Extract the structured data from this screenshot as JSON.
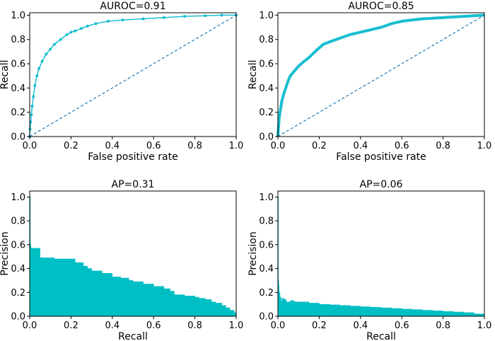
{
  "colors": {
    "curve": "#17becf",
    "diagonal": "#1f77b4",
    "fill": "#00bfc4",
    "axis": "#000000"
  },
  "chart_data": [
    {
      "type": "line",
      "title": "AUROC=0.91",
      "xlabel": "False positive rate",
      "ylabel": "Recall",
      "xlim": [
        0,
        1
      ],
      "ylim": [
        0,
        1.02
      ],
      "xticks": [
        "0.0",
        "0.2",
        "0.4",
        "0.6",
        "0.8",
        "1.0"
      ],
      "yticks": [
        "0.0",
        "0.2",
        "0.4",
        "0.6",
        "0.8",
        "1.0"
      ],
      "grid": false,
      "series": [
        {
          "style": "solid-with-markers",
          "x": [
            0,
            0.002,
            0.005,
            0.008,
            0.012,
            0.018,
            0.025,
            0.035,
            0.045,
            0.06,
            0.08,
            0.1,
            0.12,
            0.15,
            0.18,
            0.2,
            0.22,
            0.25,
            0.28,
            0.32,
            0.38,
            0.45,
            0.55,
            0.65,
            0.75,
            0.85,
            0.93,
            1.0
          ],
          "y": [
            0,
            0.06,
            0.12,
            0.18,
            0.25,
            0.33,
            0.42,
            0.5,
            0.56,
            0.62,
            0.68,
            0.72,
            0.76,
            0.8,
            0.84,
            0.86,
            0.87,
            0.89,
            0.91,
            0.93,
            0.95,
            0.96,
            0.97,
            0.98,
            0.99,
            0.995,
            1.0,
            1.0
          ]
        },
        {
          "style": "dashed",
          "x": [
            0,
            1
          ],
          "y": [
            0,
            1
          ]
        }
      ]
    },
    {
      "type": "line",
      "title": "AUROC=0.85",
      "xlabel": "False positive rate",
      "ylabel": "Recall",
      "xlim": [
        0,
        1
      ],
      "ylim": [
        0,
        1.02
      ],
      "xticks": [
        "0.0",
        "0.2",
        "0.4",
        "0.6",
        "0.8",
        "1.0"
      ],
      "yticks": [
        "0.0",
        "0.2",
        "0.4",
        "0.6",
        "0.8",
        "1.0"
      ],
      "grid": false,
      "series": [
        {
          "style": "thick-dense",
          "x": [
            0,
            0.003,
            0.006,
            0.01,
            0.015,
            0.02,
            0.03,
            0.04,
            0.05,
            0.06,
            0.07,
            0.08,
            0.1,
            0.12,
            0.15,
            0.18,
            0.2,
            0.22,
            0.25,
            0.3,
            0.35,
            0.4,
            0.45,
            0.5,
            0.55,
            0.6,
            0.65,
            0.7,
            0.8,
            0.9,
            1.0
          ],
          "y": [
            0,
            0.08,
            0.15,
            0.2,
            0.25,
            0.3,
            0.36,
            0.41,
            0.46,
            0.5,
            0.52,
            0.54,
            0.58,
            0.61,
            0.65,
            0.7,
            0.73,
            0.76,
            0.78,
            0.81,
            0.84,
            0.86,
            0.88,
            0.9,
            0.93,
            0.95,
            0.96,
            0.97,
            0.98,
            0.99,
            1.0
          ]
        },
        {
          "style": "dashed",
          "x": [
            0,
            1
          ],
          "y": [
            0,
            1
          ]
        }
      ]
    },
    {
      "type": "area",
      "title": "AP=0.31",
      "xlabel": "Recall",
      "ylabel": "Precision",
      "xlim": [
        0,
        1
      ],
      "ylim": [
        0,
        1.05
      ],
      "xticks": [
        "0.0",
        "0.2",
        "0.4",
        "0.6",
        "0.8",
        "1.0"
      ],
      "yticks": [
        "0.0",
        "0.2",
        "0.4",
        "0.6",
        "0.8",
        "1.0"
      ],
      "grid": false,
      "series": [
        {
          "style": "step-fill",
          "x": [
            0,
            0.003,
            0.006,
            0.05,
            0.12,
            0.22,
            0.26,
            0.28,
            0.3,
            0.32,
            0.35,
            0.4,
            0.44,
            0.48,
            0.5,
            0.55,
            0.6,
            0.65,
            0.68,
            0.7,
            0.75,
            0.8,
            0.82,
            0.85,
            0.88,
            0.9,
            0.93,
            0.95,
            0.97,
            0.99,
            1.0
          ],
          "y": [
            1.0,
            0.6,
            0.57,
            0.49,
            0.48,
            0.45,
            0.42,
            0.4,
            0.38,
            0.38,
            0.36,
            0.33,
            0.32,
            0.3,
            0.29,
            0.27,
            0.25,
            0.23,
            0.21,
            0.18,
            0.17,
            0.16,
            0.15,
            0.14,
            0.12,
            0.11,
            0.09,
            0.07,
            0.05,
            0.03,
            0.02
          ]
        }
      ]
    },
    {
      "type": "area",
      "title": "AP=0.06",
      "xlabel": "Recall",
      "ylabel": "Precision",
      "xlim": [
        0,
        1
      ],
      "ylim": [
        0,
        1.05
      ],
      "xticks": [
        "0.0",
        "0.2",
        "0.4",
        "0.6",
        "0.8",
        "1.0"
      ],
      "yticks": [
        "0.0",
        "0.2",
        "0.4",
        "0.6",
        "0.8",
        "1.0"
      ],
      "grid": false,
      "series": [
        {
          "style": "step-fill",
          "x": [
            0,
            0.002,
            0.004,
            0.006,
            0.01,
            0.015,
            0.02,
            0.03,
            0.04,
            0.06,
            0.08,
            0.1,
            0.15,
            0.2,
            0.25,
            0.3,
            0.35,
            0.4,
            0.45,
            0.5,
            0.55,
            0.6,
            0.65,
            0.7,
            0.75,
            0.8,
            0.85,
            0.9,
            0.95,
            1.0
          ],
          "y": [
            1.0,
            0.3,
            0.26,
            0.2,
            0.16,
            0.13,
            0.15,
            0.14,
            0.12,
            0.13,
            0.12,
            0.12,
            0.11,
            0.1,
            0.095,
            0.09,
            0.085,
            0.08,
            0.075,
            0.07,
            0.065,
            0.06,
            0.055,
            0.05,
            0.045,
            0.04,
            0.035,
            0.03,
            0.02,
            0.015
          ]
        }
      ]
    }
  ]
}
